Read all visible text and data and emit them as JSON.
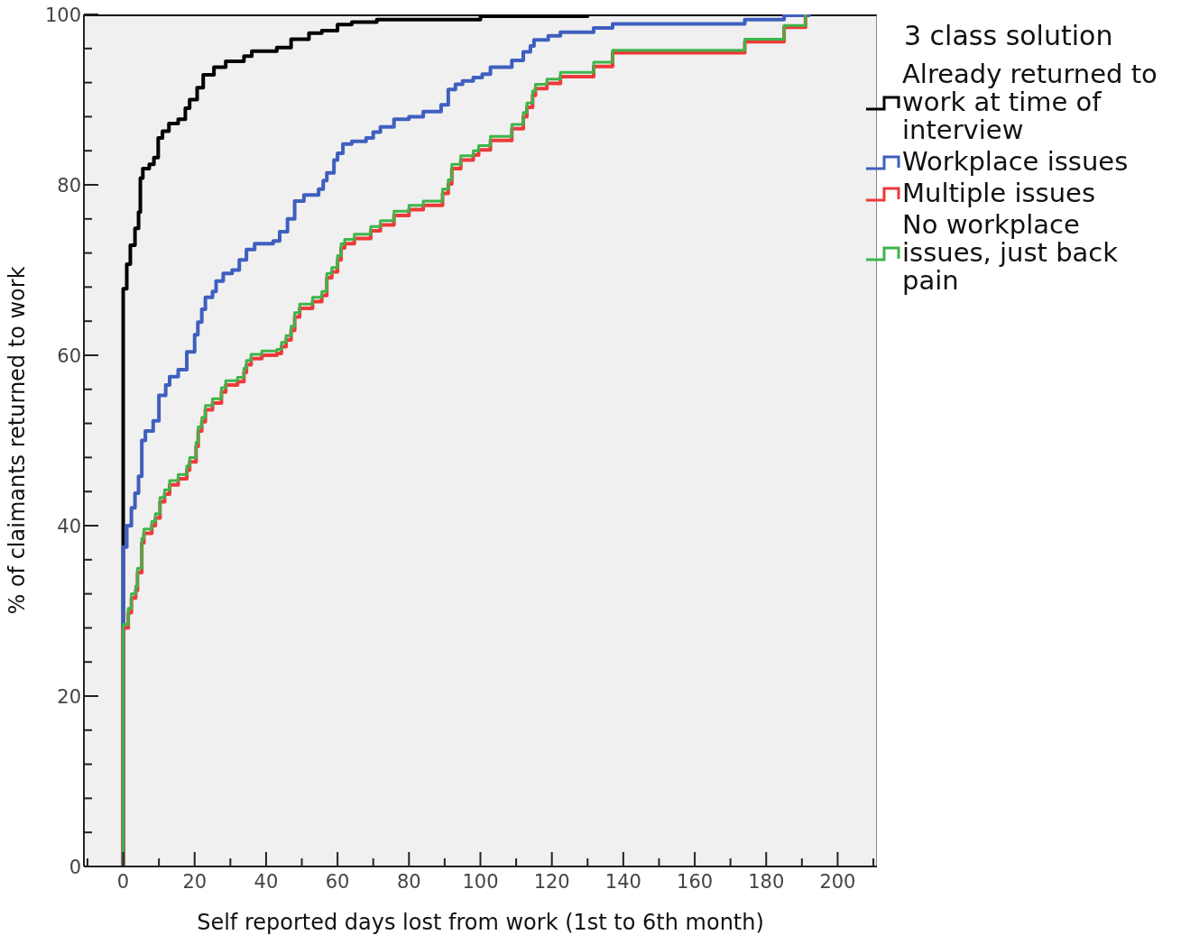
{
  "chart_data": {
    "type": "step",
    "xlabel": "Self reported days lost from work (1st to 6th month)",
    "ylabel": "% of claimants returned to work",
    "legend_title": "3 class solution",
    "legend": "right",
    "xlim": [
      -11,
      211
    ],
    "xticks": [
      {
        "value": -10,
        "label": null
      },
      0,
      {
        "value": 10,
        "label": null
      },
      20,
      {
        "value": 30,
        "label": null
      },
      40,
      {
        "value": 50,
        "label": null
      },
      60,
      {
        "value": 70,
        "label": null
      },
      80,
      {
        "value": 90,
        "label": null
      },
      100,
      {
        "value": 110,
        "label": null
      },
      120,
      {
        "value": 130,
        "label": null
      },
      140,
      {
        "value": 150,
        "label": null
      },
      160,
      {
        "value": 170,
        "label": null
      },
      180,
      {
        "value": 190,
        "label": null
      },
      200,
      {
        "value": 210,
        "label": null
      }
    ],
    "ylim": [
      0,
      100
    ],
    "yticks": [
      0,
      {
        "value": 4,
        "label": null
      },
      {
        "value": 8,
        "label": null
      },
      {
        "value": 12,
        "label": null
      },
      {
        "value": 16,
        "label": null
      },
      20,
      {
        "value": 24,
        "label": null
      },
      {
        "value": 28,
        "label": null
      },
      {
        "value": 32,
        "label": null
      },
      {
        "value": 36,
        "label": null
      },
      40,
      {
        "value": 44,
        "label": null
      },
      {
        "value": 48,
        "label": null
      },
      {
        "value": 52,
        "label": null
      },
      {
        "value": 56,
        "label": null
      },
      60,
      {
        "value": 64,
        "label": null
      },
      {
        "value": 68,
        "label": null
      },
      {
        "value": 72,
        "label": null
      },
      {
        "value": 76,
        "label": null
      },
      80,
      {
        "value": 84,
        "label": null
      },
      {
        "value": 88,
        "label": null
      },
      {
        "value": 92,
        "label": null
      },
      {
        "value": 96,
        "label": null
      },
      100
    ],
    "grid": false,
    "series": [
      {
        "name": "Already returned to work at time of interview",
        "color": "#000000",
        "x": [
          0,
          0,
          1,
          2,
          3.3,
          4.3,
          4.8,
          5.5,
          7.3,
          8.6,
          9.8,
          11,
          12.8,
          15.4,
          17.4,
          18.6,
          20.7,
          22.4,
          25.4,
          28.7,
          33.8,
          36,
          43,
          47,
          52,
          55.6,
          60,
          64,
          71,
          100,
          130,
          192
        ],
        "values": [
          0,
          67.8,
          70.7,
          72.9,
          74.9,
          76.8,
          80.8,
          81.9,
          82.4,
          83.2,
          85.5,
          86.3,
          87.2,
          87.7,
          89,
          90,
          91.4,
          92.9,
          93.8,
          94.5,
          95.1,
          95.7,
          96.1,
          97.1,
          97.8,
          98.1,
          98.8,
          99.1,
          99.4,
          99.8,
          100,
          100
        ]
      },
      {
        "name": "Workplace issues",
        "color": "#3f5fbf",
        "x": [
          0,
          0,
          1,
          2.3,
          3.3,
          4.3,
          5.2,
          6.2,
          8.4,
          10,
          11.9,
          13,
          15.4,
          17.8,
          20,
          20.9,
          22,
          23,
          25,
          26,
          28,
          30.5,
          32.5,
          34.5,
          36.8,
          42,
          43.8,
          46,
          48,
          50.6,
          54.7,
          56,
          57,
          59,
          60,
          61.5,
          64,
          68,
          70,
          72,
          75.8,
          80,
          84,
          89,
          91,
          93,
          95,
          98,
          100.5,
          102.8,
          108.8,
          112,
          114,
          115,
          119,
          122.4,
          131.7,
          137,
          174,
          185,
          192
        ],
        "values": [
          0,
          37.5,
          40,
          42.1,
          43.8,
          45.8,
          50,
          51.1,
          52.3,
          55.3,
          56.5,
          57.5,
          58.3,
          60.4,
          62.4,
          63.9,
          65.4,
          66.8,
          67.5,
          68.7,
          69.6,
          70,
          71.2,
          72.4,
          73.1,
          73.4,
          74.5,
          76,
          78.1,
          78.8,
          79.5,
          80.5,
          81.4,
          82.9,
          83.7,
          84.8,
          85.1,
          85.5,
          86.2,
          86.8,
          87.7,
          88,
          88.6,
          89.4,
          91.2,
          91.8,
          92.2,
          92.6,
          93,
          93.8,
          94.6,
          95.6,
          96.3,
          97,
          97.5,
          97.9,
          98.4,
          98.9,
          99.4,
          99.9,
          100
        ]
      },
      {
        "name": "Multiple issues",
        "color": "#ee3a3a",
        "x": [
          0,
          0,
          1.4,
          2.3,
          3.5,
          4,
          5.2,
          5.8,
          8,
          9,
          10.3,
          11.6,
          13,
          15.4,
          17.8,
          18.6,
          20.4,
          21,
          22,
          23,
          25,
          27.5,
          28.7,
          32,
          33.8,
          34.5,
          35.8,
          38.8,
          43,
          44.3,
          45.6,
          47,
          48,
          49.4,
          53,
          55.6,
          57,
          58.4,
          60,
          61,
          62,
          64.7,
          69.3,
          72,
          75.8,
          80,
          84,
          89.4,
          91,
          92,
          94.5,
          98,
          99.5,
          102.8,
          108.8,
          112,
          113,
          114.6,
          115.4,
          118.6,
          122.4,
          131.7,
          137,
          174,
          185,
          191
        ],
        "values": [
          0,
          28,
          29.8,
          31.5,
          32.4,
          34.5,
          38,
          39.1,
          40,
          40.9,
          42.8,
          43.7,
          44.8,
          45.5,
          46.5,
          47.5,
          49.3,
          51.1,
          52.2,
          53.6,
          54.4,
          55.7,
          56.5,
          56.9,
          58,
          58.9,
          59.6,
          60,
          60.2,
          61,
          61.8,
          62.9,
          64.5,
          65.5,
          66.3,
          67,
          69.1,
          69.8,
          71.2,
          72.6,
          73.1,
          73.7,
          74.6,
          75.3,
          76.4,
          77.1,
          77.6,
          79,
          80.1,
          81.9,
          82.9,
          83.5,
          84.1,
          85.2,
          86.6,
          88,
          89.1,
          90.5,
          91.3,
          91.9,
          92.7,
          93.9,
          95.5,
          96.8,
          98.5,
          100
        ]
      },
      {
        "name": "No workplace issues, just back pain",
        "color": "#3db54a",
        "x": [
          0,
          0,
          1.4,
          2.3,
          3.5,
          4,
          5.2,
          5.8,
          8,
          9,
          10.3,
          11.6,
          13,
          15.4,
          17.8,
          18.6,
          20.4,
          21,
          22,
          23,
          25,
          27.5,
          28.7,
          32,
          33.8,
          34.5,
          35.8,
          38.8,
          43,
          44.3,
          45.6,
          47,
          48,
          49.4,
          53,
          55.6,
          57,
          58.4,
          60,
          61,
          62,
          64.7,
          69.3,
          72,
          75.8,
          80,
          84,
          89.4,
          91,
          92,
          94.5,
          98,
          99.5,
          102.8,
          108.8,
          112,
          113,
          114.6,
          115.4,
          118.6,
          122.4,
          131.7,
          137,
          174,
          185,
          191
        ],
        "values": [
          0,
          28.4,
          30.3,
          32,
          32.9,
          35,
          38.5,
          39.6,
          40.5,
          41.4,
          43.3,
          44.2,
          45.3,
          46,
          47,
          48,
          49.8,
          51.6,
          52.7,
          54.1,
          54.9,
          56.2,
          57,
          57.4,
          58.5,
          59.4,
          60.1,
          60.5,
          60.7,
          61.5,
          62.3,
          63.4,
          65,
          66,
          66.8,
          67.5,
          69.6,
          70.3,
          71.7,
          73.1,
          73.6,
          74.2,
          75.1,
          75.8,
          76.9,
          77.6,
          78.1,
          79.5,
          80.6,
          82.4,
          83.4,
          84,
          84.6,
          85.7,
          87.1,
          88.5,
          89.6,
          91,
          91.8,
          92.4,
          93.2,
          94.4,
          95.8,
          97.1,
          98.7,
          100
        ]
      }
    ]
  }
}
